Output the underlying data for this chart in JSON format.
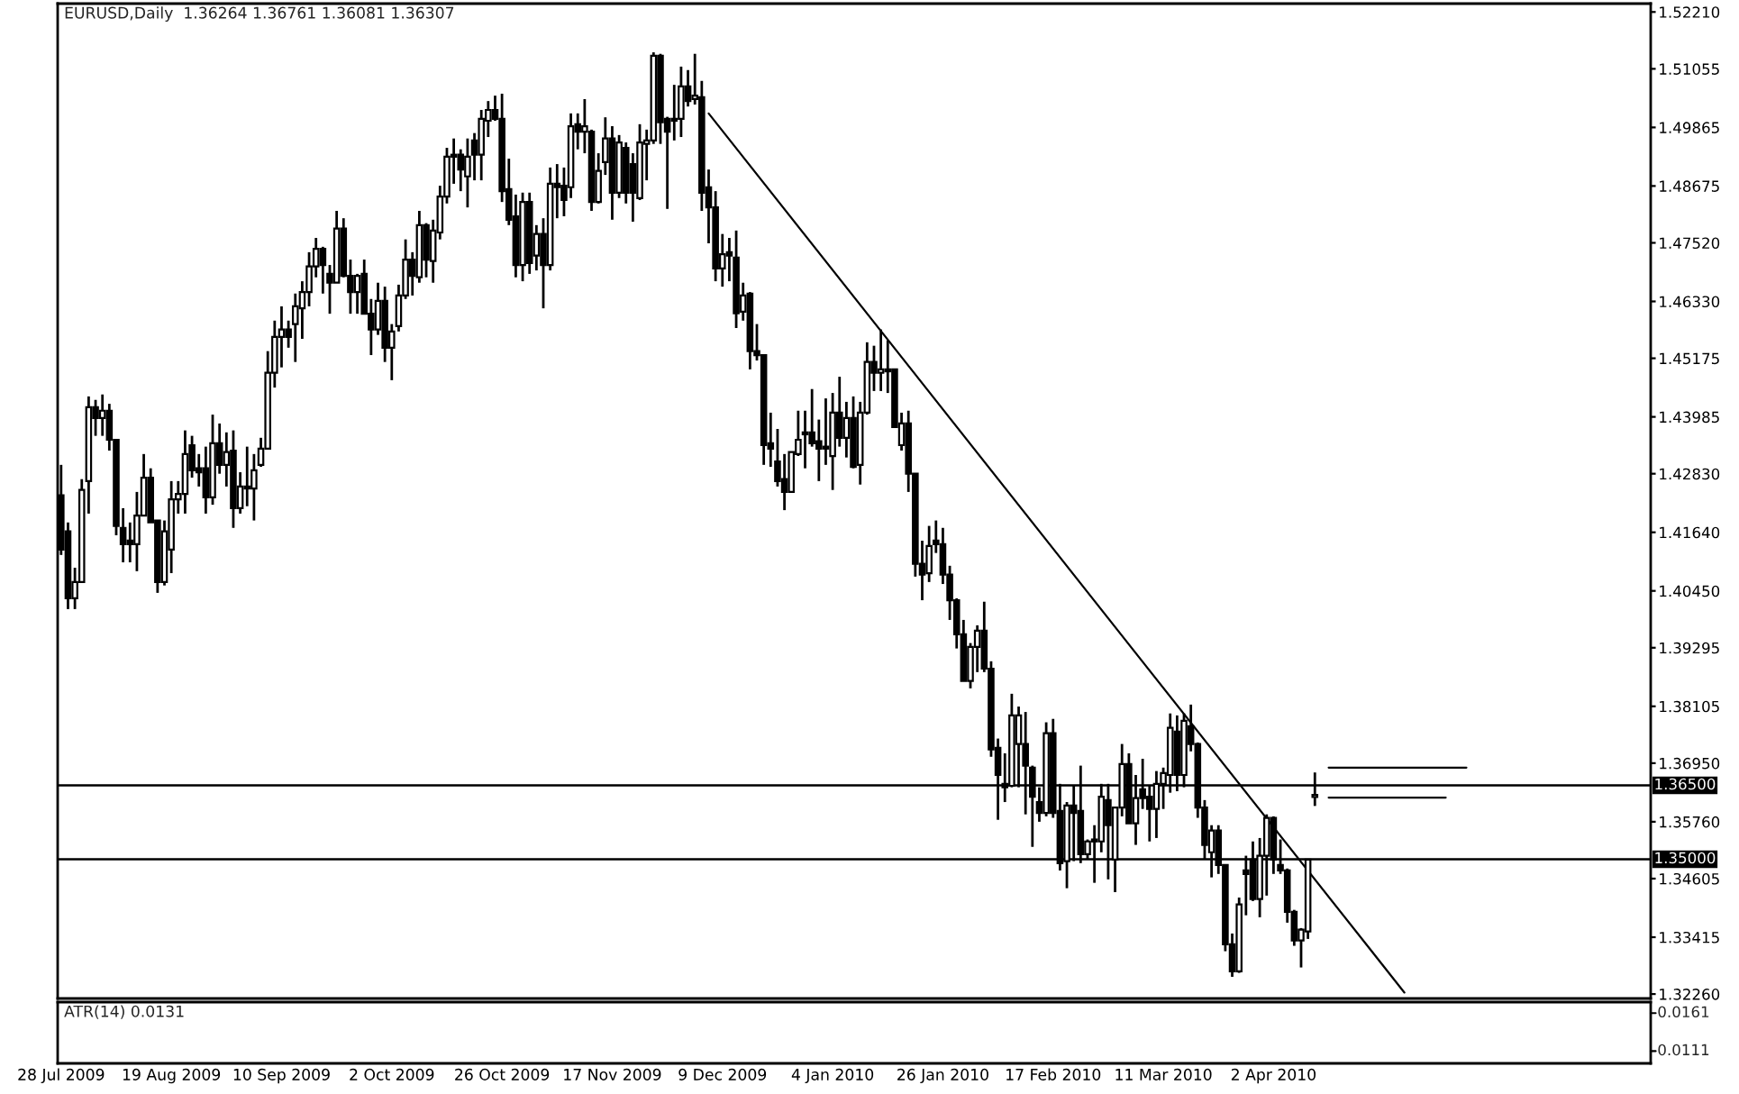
{
  "chart_data": [
    {
      "type": "candlestick",
      "title": "EURUSD,Daily  1.36264 1.36761 1.36081 1.36307",
      "categories": [
        "28 Jul 2009",
        null,
        null,
        null,
        null,
        null,
        null,
        null,
        null,
        null,
        null,
        null,
        null,
        null,
        null,
        null,
        "19 Aug 2009",
        null,
        null,
        null,
        null,
        null,
        null,
        null,
        null,
        null,
        null,
        null,
        null,
        null,
        null,
        null,
        "10 Sep 2009",
        null,
        null,
        null,
        null,
        null,
        null,
        null,
        null,
        null,
        null,
        null,
        null,
        null,
        null,
        null,
        "2 Oct 2009",
        null,
        null,
        null,
        null,
        null,
        null,
        null,
        null,
        null,
        null,
        null,
        null,
        null,
        null,
        null,
        "26 Oct 2009",
        null,
        null,
        null,
        null,
        null,
        null,
        null,
        null,
        null,
        null,
        null,
        null,
        null,
        null,
        null,
        "17 Nov 2009",
        null,
        null,
        null,
        null,
        null,
        null,
        null,
        null,
        null,
        null,
        null,
        null,
        null,
        null,
        null,
        "9 Dec 2009",
        null,
        null,
        null,
        null,
        null,
        null,
        null,
        null,
        null,
        null,
        null,
        null,
        null,
        null,
        null,
        "4 Jan 2010",
        null,
        null,
        null,
        null,
        null,
        null,
        null,
        null,
        null,
        null,
        null,
        null,
        null,
        null,
        null,
        "26 Jan 2010",
        null,
        null,
        null,
        null,
        null,
        null,
        null,
        null,
        null,
        null,
        null,
        null,
        null,
        null,
        null,
        "17 Feb 2010",
        null,
        null,
        null,
        null,
        null,
        null,
        null,
        null,
        null,
        null,
        null,
        null,
        null,
        null,
        null,
        "11 Mar 2010",
        null,
        null,
        null,
        null,
        null,
        null,
        null,
        null,
        null,
        null,
        null,
        null,
        null,
        null,
        null,
        "2 Apr 2010",
        null,
        null,
        null,
        null,
        null,
        null,
        null,
        null,
        null,
        null,
        null,
        null,
        null,
        null,
        null,
        null,
        null,
        null,
        null,
        null,
        null,
        null,
        null,
        null,
        null,
        null,
        null,
        null,
        null,
        null,
        null,
        null,
        null,
        null,
        null,
        null,
        null,
        null,
        null,
        null,
        null,
        null,
        null,
        null,
        null,
        null,
        null,
        null,
        null,
        null,
        null,
        null,
        null,
        null
      ],
      "ohlc": [
        [
          1.4239,
          1.4301,
          1.4118,
          1.4129
        ],
        [
          1.4166,
          1.4184,
          1.4008,
          1.403
        ],
        [
          1.403,
          1.4092,
          1.4008,
          1.4063
        ],
        [
          1.4063,
          1.4272,
          1.4063,
          1.425
        ],
        [
          1.4268,
          1.444,
          1.4202,
          1.4418
        ],
        [
          1.4418,
          1.4433,
          1.436,
          1.4396
        ],
        [
          1.4396,
          1.4444,
          1.436,
          1.4411
        ],
        [
          1.4411,
          1.4425,
          1.433,
          1.4352
        ],
        [
          1.4352,
          1.4352,
          1.4158,
          1.4177
        ],
        [
          1.4173,
          1.4213,
          1.4103,
          1.414
        ],
        [
          1.4147,
          1.4184,
          1.4103,
          1.414
        ],
        [
          1.414,
          1.4246,
          1.4085,
          1.4198
        ],
        [
          1.4198,
          1.4323,
          1.4198,
          1.4275
        ],
        [
          1.4275,
          1.4294,
          1.4184,
          1.4184
        ],
        [
          1.4188,
          1.4188,
          1.4041,
          1.4063
        ],
        [
          1.4063,
          1.4188,
          1.4056,
          1.4166
        ],
        [
          1.4129,
          1.4268,
          1.4081,
          1.4231
        ],
        [
          1.4231,
          1.4268,
          1.4202,
          1.4242
        ],
        [
          1.4242,
          1.4371,
          1.4202,
          1.4323
        ],
        [
          1.4341,
          1.436,
          1.4275,
          1.429
        ],
        [
          1.4294,
          1.4323,
          1.4257,
          1.4286
        ],
        [
          1.4294,
          1.4338,
          1.4202,
          1.4235
        ],
        [
          1.4235,
          1.4403,
          1.422,
          1.4345
        ],
        [
          1.4345,
          1.4385,
          1.4283,
          1.4301
        ],
        [
          1.4301,
          1.4367,
          1.4257,
          1.4327
        ],
        [
          1.433,
          1.4371,
          1.4173,
          1.4213
        ],
        [
          1.4213,
          1.4286,
          1.4202,
          1.4257
        ],
        [
          1.4257,
          1.4338,
          1.4217,
          1.4253
        ],
        [
          1.4253,
          1.4323,
          1.4188,
          1.429
        ],
        [
          1.4301,
          1.4356,
          1.4297,
          1.4334
        ],
        [
          1.4334,
          1.4532,
          1.4334,
          1.4488
        ],
        [
          1.4488,
          1.4594,
          1.4458,
          1.4561
        ],
        [
          1.4561,
          1.4623,
          1.4499,
          1.4576
        ],
        [
          1.4576,
          1.4594,
          1.4539,
          1.4561
        ],
        [
          1.4587,
          1.4649,
          1.451,
          1.4623
        ],
        [
          1.4619,
          1.4674,
          1.4557,
          1.4652
        ],
        [
          1.4652,
          1.4733,
          1.4623,
          1.4704
        ],
        [
          1.4704,
          1.4762,
          1.4682,
          1.474
        ],
        [
          1.474,
          1.4744,
          1.4649,
          1.4707
        ],
        [
          1.4689,
          1.4707,
          1.4608,
          1.4671
        ],
        [
          1.4671,
          1.4817,
          1.4671,
          1.4781
        ],
        [
          1.4781,
          1.4802,
          1.4682,
          1.4685
        ],
        [
          1.4685,
          1.4718,
          1.4608,
          1.4652
        ],
        [
          1.4652,
          1.4689,
          1.4608,
          1.4685
        ],
        [
          1.4689,
          1.4718,
          1.4608,
          1.4608
        ],
        [
          1.4608,
          1.4638,
          1.4524,
          1.4576
        ],
        [
          1.4576,
          1.4671,
          1.4565,
          1.4634
        ],
        [
          1.4634,
          1.4663,
          1.451,
          1.4539
        ],
        [
          1.4539,
          1.4587,
          1.4473,
          1.4572
        ],
        [
          1.4583,
          1.4667,
          1.4572,
          1.4645
        ],
        [
          1.4645,
          1.4759,
          1.4638,
          1.4718
        ],
        [
          1.4718,
          1.4733,
          1.4645,
          1.4685
        ],
        [
          1.4682,
          1.4817,
          1.4671,
          1.4788
        ],
        [
          1.4788,
          1.4792,
          1.4682,
          1.4718
        ],
        [
          1.4715,
          1.4799,
          1.4671,
          1.4777
        ],
        [
          1.4773,
          1.4868,
          1.4759,
          1.4846
        ],
        [
          1.4846,
          1.4945,
          1.4832,
          1.4927
        ],
        [
          1.4927,
          1.4964,
          1.4872,
          1.4931
        ],
        [
          1.4931,
          1.4942,
          1.4857,
          1.4901
        ],
        [
          1.4887,
          1.4964,
          1.4824,
          1.4927
        ],
        [
          1.496,
          1.4975,
          1.4879,
          1.4931
        ],
        [
          1.4931,
          1.5022,
          1.4879,
          1.5004
        ],
        [
          1.5,
          1.504,
          1.4967,
          1.5022
        ],
        [
          1.5022,
          1.5051,
          1.5,
          1.5004
        ],
        [
          1.5004,
          1.5055,
          1.4835,
          1.4857
        ],
        [
          1.4861,
          1.4923,
          1.4788,
          1.4799
        ],
        [
          1.4806,
          1.485,
          1.4682,
          1.4707
        ],
        [
          1.4707,
          1.4854,
          1.4674,
          1.4835
        ],
        [
          1.4835,
          1.4854,
          1.4689,
          1.4711
        ],
        [
          1.4726,
          1.4788,
          1.4696,
          1.477
        ],
        [
          1.477,
          1.4802,
          1.4619,
          1.4707
        ],
        [
          1.4707,
          1.4905,
          1.4696,
          1.4872
        ],
        [
          1.4872,
          1.4912,
          1.4802,
          1.4865
        ],
        [
          1.4868,
          1.4905,
          1.4806,
          1.4839
        ],
        [
          1.4865,
          1.5015,
          1.4843,
          1.4989
        ],
        [
          1.4993,
          1.5015,
          1.4942,
          1.4978
        ],
        [
          1.4978,
          1.5044,
          1.4934,
          1.4989
        ],
        [
          1.4978,
          1.4982,
          1.4817,
          1.4835
        ],
        [
          1.4835,
          1.4934,
          1.4832,
          1.4898
        ],
        [
          1.4916,
          1.5007,
          1.489,
          1.4964
        ],
        [
          1.4964,
          1.4989,
          1.4799,
          1.4854
        ],
        [
          1.4854,
          1.4971,
          1.4843,
          1.4956
        ],
        [
          1.4945,
          1.4956,
          1.4832,
          1.4854
        ],
        [
          1.4912,
          1.4934,
          1.4795,
          1.4854
        ],
        [
          1.4843,
          1.4993,
          1.4839,
          1.4956
        ],
        [
          1.4953,
          1.4982,
          1.4879,
          1.496
        ],
        [
          1.496,
          1.5139,
          1.4953,
          1.5132
        ],
        [
          1.5132,
          1.5136,
          1.4953,
          1.4997
        ],
        [
          1.5004,
          1.5008,
          1.4821,
          1.4978
        ],
        [
          1.5004,
          1.5073,
          1.496,
          1.5
        ],
        [
          1.5004,
          1.511,
          1.4967,
          1.507
        ],
        [
          1.507,
          1.5103,
          1.5029,
          1.504
        ],
        [
          1.5044,
          1.5136,
          1.5033,
          1.5051
        ],
        [
          1.5048,
          1.5081,
          1.4817,
          1.4854
        ],
        [
          1.4865,
          1.4901,
          1.4751,
          1.4824
        ],
        [
          1.4824,
          1.4857,
          1.4674,
          1.47
        ],
        [
          1.47,
          1.477,
          1.4663,
          1.4729
        ],
        [
          1.4733,
          1.4762,
          1.4674,
          1.4726
        ],
        [
          1.4722,
          1.4777,
          1.4579,
          1.4609
        ],
        [
          1.4612,
          1.4671,
          1.4594,
          1.4645
        ],
        [
          1.4649,
          1.4652,
          1.4495,
          1.4532
        ],
        [
          1.4532,
          1.4587,
          1.4513,
          1.4524
        ],
        [
          1.4524,
          1.4524,
          1.4301,
          1.4341
        ],
        [
          1.4345,
          1.4407,
          1.4297,
          1.4334
        ],
        [
          1.4308,
          1.4374,
          1.4257,
          1.4268
        ],
        [
          1.4272,
          1.4323,
          1.4209,
          1.4246
        ],
        [
          1.4246,
          1.4327,
          1.4246,
          1.4327
        ],
        [
          1.4323,
          1.4411,
          1.4319,
          1.4352
        ],
        [
          1.4367,
          1.4411,
          1.4294,
          1.4363
        ],
        [
          1.4367,
          1.4455,
          1.4338,
          1.4345
        ],
        [
          1.4349,
          1.4393,
          1.4268,
          1.4334
        ],
        [
          1.4334,
          1.4436,
          1.4301,
          1.4338
        ],
        [
          1.4319,
          1.4447,
          1.425,
          1.4407
        ],
        [
          1.4407,
          1.448,
          1.4338,
          1.4356
        ],
        [
          1.4356,
          1.4429,
          1.4316,
          1.4396
        ],
        [
          1.4396,
          1.444,
          1.4294,
          1.4297
        ],
        [
          1.4301,
          1.4429,
          1.4261,
          1.4407
        ],
        [
          1.4407,
          1.455,
          1.4403,
          1.451
        ],
        [
          1.451,
          1.4543,
          1.4451,
          1.4488
        ],
        [
          1.4488,
          1.4576,
          1.4451,
          1.4495
        ],
        [
          1.4495,
          1.4554,
          1.4447,
          1.4491
        ],
        [
          1.4495,
          1.4495,
          1.4378,
          1.4378
        ],
        [
          1.4341,
          1.4407,
          1.433,
          1.4385
        ],
        [
          1.4385,
          1.4411,
          1.4246,
          1.4283
        ],
        [
          1.4283,
          1.4283,
          1.4074,
          1.41
        ],
        [
          1.41,
          1.4147,
          1.4026,
          1.4078
        ],
        [
          1.4081,
          1.4177,
          1.4063,
          1.4136
        ],
        [
          1.4147,
          1.4188,
          1.4122,
          1.414
        ],
        [
          1.414,
          1.4173,
          1.4059,
          1.4078
        ],
        [
          1.4078,
          1.4096,
          1.3986,
          1.4026
        ],
        [
          1.4026,
          1.403,
          1.3928,
          1.3957
        ],
        [
          1.3957,
          1.3986,
          1.3862,
          1.3862
        ],
        [
          1.3862,
          1.3939,
          1.3847,
          1.3931
        ],
        [
          1.3931,
          1.3975,
          1.388,
          1.3964
        ],
        [
          1.3964,
          1.4023,
          1.388,
          1.3887
        ],
        [
          1.3887,
          1.3902,
          1.3708,
          1.3723
        ],
        [
          1.3726,
          1.3745,
          1.358,
          1.3671
        ],
        [
          1.3653,
          1.3715,
          1.3616,
          1.3646
        ],
        [
          1.3649,
          1.3836,
          1.3646,
          1.3792
        ],
        [
          1.3734,
          1.381,
          1.3646,
          1.3792
        ],
        [
          1.3734,
          1.3799,
          1.3591,
          1.369
        ],
        [
          1.3686,
          1.369,
          1.3525,
          1.3627
        ],
        [
          1.3616,
          1.3646,
          1.3576,
          1.3594
        ],
        [
          1.3594,
          1.3778,
          1.3587,
          1.3756
        ],
        [
          1.3756,
          1.3785,
          1.3584,
          1.3594
        ],
        [
          1.3598,
          1.3653,
          1.3477,
          1.3492
        ],
        [
          1.3496,
          1.3616,
          1.3441,
          1.3609
        ],
        [
          1.3609,
          1.3649,
          1.3496,
          1.3594
        ],
        [
          1.3598,
          1.369,
          1.3492,
          1.351
        ],
        [
          1.351,
          1.354,
          1.3499,
          1.3536
        ],
        [
          1.354,
          1.3569,
          1.3452,
          1.3536
        ],
        [
          1.3536,
          1.3653,
          1.3514,
          1.3627
        ],
        [
          1.362,
          1.3653,
          1.3459,
          1.3569
        ],
        [
          1.3499,
          1.3605,
          1.3433,
          1.3605
        ],
        [
          1.3605,
          1.3734,
          1.3587,
          1.3693
        ],
        [
          1.3693,
          1.3715,
          1.3573,
          1.3573
        ],
        [
          1.3573,
          1.3671,
          1.3529,
          1.3624
        ],
        [
          1.3642,
          1.3704,
          1.3602,
          1.3624
        ],
        [
          1.3627,
          1.3649,
          1.3536,
          1.3602
        ],
        [
          1.3602,
          1.3679,
          1.3543,
          1.3653
        ],
        [
          1.3653,
          1.3686,
          1.3602,
          1.3675
        ],
        [
          1.3671,
          1.3796,
          1.3635,
          1.3767
        ],
        [
          1.3759,
          1.3792,
          1.3638,
          1.3671
        ],
        [
          1.3671,
          1.3796,
          1.3646,
          1.3781
        ],
        [
          1.377,
          1.3814,
          1.3719,
          1.3734
        ],
        [
          1.3734,
          1.3737,
          1.3584,
          1.3605
        ],
        [
          1.3605,
          1.362,
          1.3499,
          1.3529
        ],
        [
          1.3514,
          1.3569,
          1.3463,
          1.3558
        ],
        [
          1.3558,
          1.3569,
          1.347,
          1.3488
        ],
        [
          1.3488,
          1.3488,
          1.3313,
          1.3327
        ],
        [
          1.3327,
          1.3349,
          1.3261,
          1.3272
        ],
        [
          1.3272,
          1.3422,
          1.3269,
          1.3408
        ],
        [
          1.3477,
          1.3507,
          1.3386,
          1.347
        ],
        [
          1.3499,
          1.3536,
          1.3415,
          1.3419
        ],
        [
          1.3419,
          1.3543,
          1.3382,
          1.3507
        ],
        [
          1.3507,
          1.3591,
          1.3426,
          1.3584
        ],
        [
          1.3584,
          1.3587,
          1.347,
          1.3499
        ],
        [
          1.3488,
          1.354,
          1.347,
          1.3477
        ],
        [
          1.3477,
          1.3481,
          1.3371,
          1.3393
        ],
        [
          1.3393,
          1.3397,
          1.3324,
          1.3335
        ],
        [
          1.3335,
          1.336,
          1.328,
          1.3357
        ],
        [
          1.3353,
          1.3499,
          1.3338,
          1.3499
        ],
        [
          1.36264,
          1.36761,
          1.36081,
          1.36307
        ],
        null,
        null,
        null,
        null,
        null,
        null,
        null,
        null,
        null,
        null,
        null,
        null,
        null,
        null,
        null,
        null,
        null,
        null,
        null,
        null,
        null,
        null,
        null,
        null,
        null,
        null,
        null,
        null,
        null,
        null,
        null,
        null,
        null,
        null,
        null,
        null,
        null,
        null,
        null,
        null,
        null,
        null,
        null,
        null,
        null,
        null,
        null,
        null
      ],
      "series": [
        {
          "type": "line",
          "color": "#000000",
          "values": [
            null,
            null,
            null,
            null,
            null,
            null,
            null,
            null,
            null,
            null,
            null,
            null,
            null,
            null,
            null,
            null,
            null,
            null,
            null,
            null,
            null,
            null,
            null,
            null,
            null,
            null,
            null,
            null,
            null,
            null,
            null,
            null,
            null,
            null,
            null,
            null,
            null,
            null,
            null,
            null,
            null,
            null,
            null,
            null,
            null,
            null,
            null,
            null,
            null,
            null,
            null,
            null,
            null,
            null,
            null,
            null,
            null,
            null,
            null,
            null,
            null,
            null,
            null,
            null,
            null,
            null,
            null,
            null,
            null,
            null,
            null,
            null,
            null,
            null,
            null,
            null,
            null,
            null,
            null,
            null,
            null,
            null,
            null,
            null,
            null,
            null,
            null,
            null,
            null,
            null,
            null,
            null,
            null,
            null,
            1.5015,
            null,
            null,
            null,
            null,
            null,
            null,
            null,
            null,
            null,
            null,
            null,
            null,
            null,
            null,
            null,
            null,
            null,
            null,
            null,
            null,
            null,
            null,
            null,
            null,
            null,
            null,
            null,
            null,
            null,
            null,
            null,
            null,
            null,
            null,
            null,
            null,
            null,
            null,
            null,
            null,
            null,
            null,
            null,
            null,
            null,
            null,
            null,
            null,
            null,
            null,
            null,
            null,
            null,
            null,
            null,
            null,
            null,
            null,
            null,
            null,
            null,
            null,
            null,
            null,
            null,
            null,
            null,
            null,
            null,
            null,
            null,
            null,
            null,
            null,
            null,
            null,
            null,
            null,
            null,
            null,
            null,
            null,
            null,
            null,
            null,
            null,
            null,
            null,
            null,
            null,
            null,
            null,
            null,
            null,
            null,
            null,
            null,
            null,
            null,
            null,
            1.3229,
            null,
            null,
            null,
            null,
            null,
            null,
            null,
            null,
            null,
            null,
            null,
            null,
            null,
            null,
            null,
            null,
            null,
            null,
            null,
            null,
            null,
            null,
            null,
            null,
            null,
            null,
            null,
            null,
            null,
            null,
            null,
            null,
            null,
            null,
            null
          ]
        },
        {
          "type": "line",
          "color": "#000000",
          "values": [
            null,
            null,
            null,
            null,
            null,
            null,
            null,
            null,
            null,
            null,
            null,
            null,
            null,
            null,
            null,
            null,
            null,
            null,
            null,
            null,
            null,
            null,
            null,
            null,
            null,
            null,
            null,
            null,
            null,
            null,
            null,
            null,
            null,
            null,
            null,
            null,
            null,
            null,
            null,
            null,
            null,
            null,
            null,
            null,
            null,
            null,
            null,
            null,
            null,
            null,
            null,
            null,
            null,
            null,
            null,
            null,
            null,
            null,
            null,
            null,
            null,
            null,
            null,
            null,
            null,
            null,
            null,
            null,
            null,
            null,
            null,
            null,
            null,
            null,
            null,
            null,
            null,
            null,
            null,
            null,
            null,
            null,
            null,
            null,
            null,
            null,
            null,
            null,
            null,
            null,
            null,
            null,
            null,
            null,
            null,
            null,
            null,
            null,
            null,
            null,
            null,
            null,
            null,
            null,
            null,
            null,
            null,
            null,
            null,
            null,
            null,
            null,
            null,
            null,
            null,
            null,
            null,
            null,
            null,
            null,
            null,
            null,
            null,
            null,
            null,
            null,
            null,
            null,
            null,
            null,
            null,
            null,
            null,
            null,
            null,
            null,
            null,
            null,
            null,
            null,
            null,
            null,
            null,
            null,
            null,
            null,
            null,
            null,
            null,
            null,
            null,
            null,
            null,
            null,
            null,
            null,
            null,
            null,
            null,
            null,
            null,
            null,
            null,
            null,
            null,
            null,
            null,
            null,
            null,
            null,
            null,
            null,
            null,
            null,
            null,
            null,
            null,
            null,
            null,
            null,
            null,
            null,
            null,
            null,
            1.3686,
            null,
            null,
            null,
            null,
            null,
            null,
            null,
            null,
            null,
            null,
            null,
            null,
            null,
            null,
            null,
            null,
            null,
            null,
            null,
            1.3686,
            null,
            null,
            null,
            null,
            null,
            null,
            null,
            null,
            null,
            null,
            null,
            null,
            null,
            null,
            null,
            null,
            null,
            null,
            null,
            null,
            null,
            null,
            null,
            null,
            null,
            null
          ]
        },
        {
          "type": "line",
          "color": "#000000",
          "values": [
            null,
            null,
            null,
            null,
            null,
            null,
            null,
            null,
            null,
            null,
            null,
            null,
            null,
            null,
            null,
            null,
            null,
            null,
            null,
            null,
            null,
            null,
            null,
            null,
            null,
            null,
            null,
            null,
            null,
            null,
            null,
            null,
            null,
            null,
            null,
            null,
            null,
            null,
            null,
            null,
            null,
            null,
            null,
            null,
            null,
            null,
            null,
            null,
            null,
            null,
            null,
            null,
            null,
            null,
            null,
            null,
            null,
            null,
            null,
            null,
            null,
            null,
            null,
            null,
            null,
            null,
            null,
            null,
            null,
            null,
            null,
            null,
            null,
            null,
            null,
            null,
            null,
            null,
            null,
            null,
            null,
            null,
            null,
            null,
            null,
            null,
            null,
            null,
            null,
            null,
            null,
            null,
            null,
            null,
            null,
            null,
            null,
            null,
            null,
            null,
            null,
            null,
            null,
            null,
            null,
            null,
            null,
            null,
            null,
            null,
            null,
            null,
            null,
            null,
            null,
            null,
            null,
            null,
            null,
            null,
            null,
            null,
            null,
            null,
            null,
            null,
            null,
            null,
            null,
            null,
            null,
            null,
            null,
            null,
            null,
            null,
            null,
            null,
            null,
            null,
            null,
            null,
            null,
            null,
            null,
            null,
            null,
            null,
            null,
            null,
            null,
            null,
            null,
            null,
            null,
            null,
            null,
            null,
            null,
            null,
            null,
            null,
            null,
            null,
            null,
            null,
            null,
            null,
            null,
            null,
            null,
            null,
            null,
            null,
            null,
            null,
            null,
            null,
            null,
            null,
            null,
            null,
            null,
            null,
            1.3625,
            null,
            null,
            null,
            null,
            null,
            null,
            null,
            null,
            null,
            null,
            null,
            null,
            null,
            null,
            null,
            null,
            1.3625,
            null,
            null,
            null,
            null,
            null,
            null,
            null,
            null,
            null,
            null,
            null,
            null,
            null,
            null,
            null,
            null,
            null,
            null,
            null,
            null,
            null,
            null,
            null,
            null,
            null,
            null,
            null,
            null,
            null
          ]
        }
      ],
      "ref_lines": [
        {
          "axis": "y",
          "value": 1.365,
          "label": "1.36500",
          "color": "#000000"
        },
        {
          "axis": "y",
          "value": 1.35,
          "label": "1.35000",
          "color": "#000000"
        }
      ],
      "ylim": [
        1.3217,
        1.5238
      ],
      "yticks": [
        {
          "value": 1.5221,
          "label": "1.52210"
        },
        1.51055,
        1.49865,
        1.48675,
        {
          "value": 1.4752,
          "label": "1.47520"
        },
        {
          "value": 1.4633,
          "label": "1.46330"
        },
        1.45175,
        1.43985,
        {
          "value": 1.4283,
          "label": "1.42830"
        },
        {
          "value": 1.4164,
          "label": "1.41640"
        },
        {
          "value": 1.4045,
          "label": "1.40450"
        },
        1.39295,
        1.38105,
        {
          "value": 1.3695,
          "label": "1.36950"
        },
        {
          "value": 1.3576,
          "label": "1.35760"
        },
        1.34605,
        1.33415,
        {
          "value": 1.3226,
          "label": "1.32260"
        }
      ],
      "grid": false,
      "legend": false
    },
    {
      "type": "other",
      "annotations": [
        "ATR(14) 0.0131",
        "0.0161",
        "0.0111"
      ]
    }
  ]
}
